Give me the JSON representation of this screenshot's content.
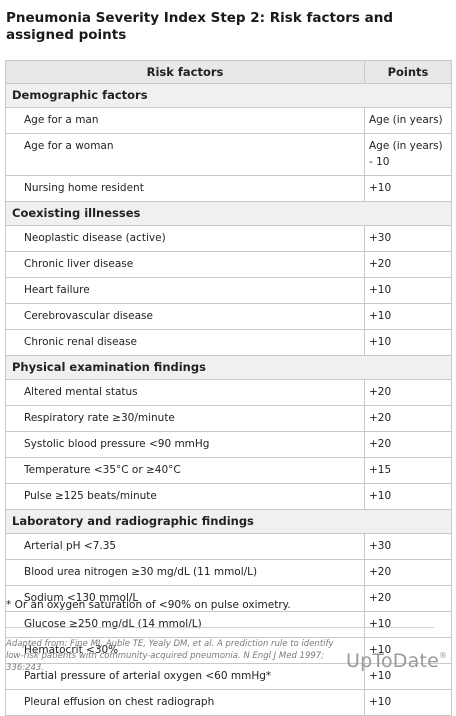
{
  "title": "Pneumonia Severity Index Step 2: Risk factors and assigned points",
  "table": {
    "col_factor": "Risk factors",
    "col_points": "Points",
    "sections": [
      {
        "name": "Demographic factors",
        "rows": [
          {
            "factor": "Age for a man",
            "points": "Age (in years)"
          },
          {
            "factor": "Age for a woman",
            "points": "Age (in years) - 10"
          },
          {
            "factor": "Nursing home resident",
            "points": "+10"
          }
        ]
      },
      {
        "name": "Coexisting illnesses",
        "rows": [
          {
            "factor": "Neoplastic disease (active)",
            "points": "+30"
          },
          {
            "factor": "Chronic liver disease",
            "points": "+20"
          },
          {
            "factor": "Heart failure",
            "points": "+10"
          },
          {
            "factor": "Cerebrovascular disease",
            "points": "+10"
          },
          {
            "factor": "Chronic renal disease",
            "points": "+10"
          }
        ]
      },
      {
        "name": "Physical examination findings",
        "rows": [
          {
            "factor": "Altered mental status",
            "points": "+20"
          },
          {
            "factor": "Respiratory rate ≥30/minute",
            "points": "+20"
          },
          {
            "factor": "Systolic blood pressure <90 mmHg",
            "points": "+20"
          },
          {
            "factor": "Temperature <35°C or ≥40°C",
            "points": "+15"
          },
          {
            "factor": "Pulse ≥125 beats/minute",
            "points": "+10"
          }
        ]
      },
      {
        "name": "Laboratory and radiographic findings",
        "rows": [
          {
            "factor": "Arterial pH <7.35",
            "points": "+30"
          },
          {
            "factor": "Blood urea nitrogen ≥30 mg/dL (11 mmol/L)",
            "points": "+20"
          },
          {
            "factor": "Sodium <130 mmol/L",
            "points": "+20"
          },
          {
            "factor": "Glucose ≥250 mg/dL (14 mmol/L)",
            "points": "+10"
          },
          {
            "factor": "Hematocrit <30%",
            "points": "+10"
          },
          {
            "factor": "Partial pressure of arterial oxygen <60 mmHg*",
            "points": "+10"
          },
          {
            "factor": "Pleural effusion on chest radiograph",
            "points": "+10"
          }
        ]
      }
    ]
  },
  "footnote": "* Or an oxygen saturation of <90% on pulse oximetry.",
  "source": "Adapted from: Fine MJ, Auble TE, Yealy DM, et al. A prediction rule to identify low-risk patients with community-acquired pneumonia. N Engl J Med 1997; 336:243.",
  "logo": {
    "text": "UpToDate",
    "mark": "®"
  }
}
